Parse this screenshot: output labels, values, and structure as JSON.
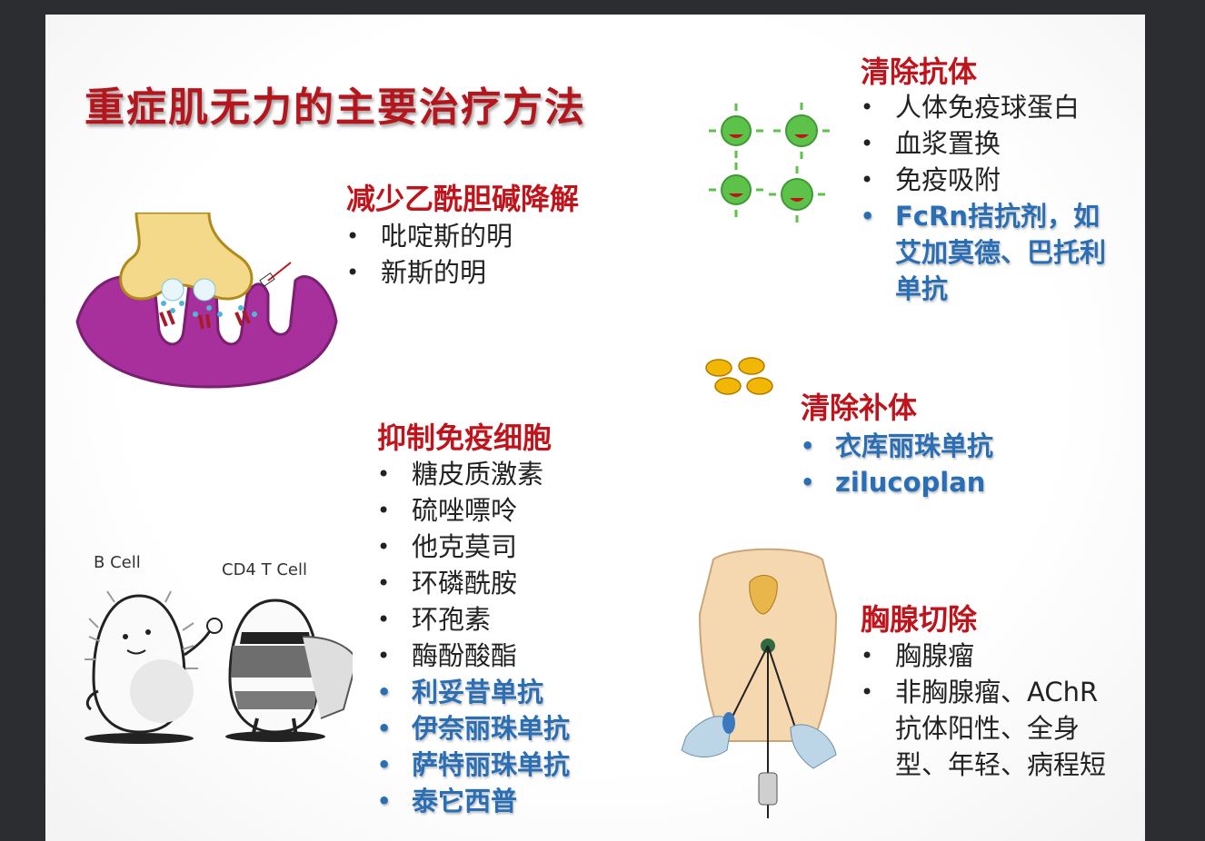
{
  "slide": {
    "title": "重症肌无力的主要治疗方法",
    "sections": {
      "reduce_ach": {
        "heading": "减少乙酰胆碱降解",
        "items": [
          "吡啶斯的明",
          "新斯的明"
        ]
      },
      "clear_antibody": {
        "heading": "清除抗体",
        "items": [
          "人体免疫球蛋白",
          "血浆置换",
          "免疫吸附",
          "FcRn拮抗剂，如艾加莫德、巴托利单抗"
        ]
      },
      "clear_complement": {
        "heading": "清除补体",
        "items": [
          "衣库丽珠单抗",
          "zilucoplan"
        ]
      },
      "suppress_immune": {
        "heading": "抑制免疫细胞",
        "items": [
          "糖皮质激素",
          "硫唑嘌呤",
          "他克莫司",
          "环磷酰胺",
          "环孢素",
          "酶酚酸酯",
          "利妥昔单抗",
          "伊奈丽珠单抗",
          "萨特丽珠单抗",
          "泰它西普"
        ]
      },
      "thymectomy": {
        "heading": "胸腺切除",
        "items": [
          "胸腺瘤",
          "非胸腺瘤、AChR抗体阳性、全身型、年轻、病程短"
        ]
      }
    },
    "illustrations": {
      "b_cell_label": "B Cell",
      "t_cell_label": "CD4 T Cell"
    },
    "colors": {
      "heading_red": "#c0141c",
      "emphasis_blue": "#2a6fb5",
      "virus_green": "#5cc24a",
      "membrane_purple": "#a8309c",
      "complement_yellow": "#f2b705"
    }
  }
}
